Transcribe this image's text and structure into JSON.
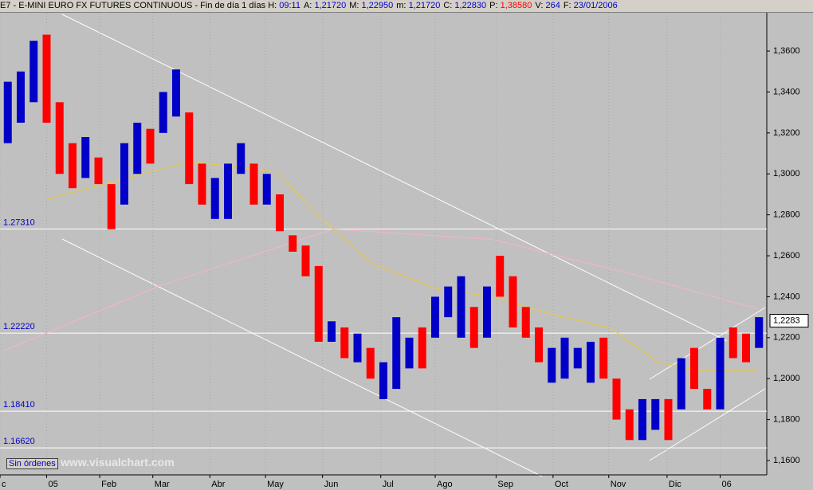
{
  "header": {
    "title": "E7 - E-MINI EURO FX FUTURES CONTINUOUS - Fin de día 1 días",
    "items": [
      {
        "label": "H:",
        "value": "09:11"
      },
      {
        "label": "A:",
        "value": "1,21720"
      },
      {
        "label": "M:",
        "value": "1,22950"
      },
      {
        "label": "m:",
        "value": "1,21720"
      },
      {
        "label": "C:",
        "value": "1,22830"
      },
      {
        "label": "P:",
        "value": "1,38580"
      },
      {
        "label": "V:",
        "value": "264"
      },
      {
        "label": "F:",
        "value": "23/01/2006"
      }
    ]
  },
  "footer": {
    "button": "Sin órdenes",
    "watermark": "www.visualchart.com"
  },
  "chart_data": {
    "type": "range-bar",
    "grid": true,
    "xlim": [
      -3.6,
      55.6
    ],
    "ylim": [
      1.153,
      1.3787
    ],
    "xticks": [
      {
        "value": -3.6,
        "label": "c"
      },
      {
        "value": 0,
        "label": "05"
      },
      {
        "value": 4.1,
        "label": "Feb"
      },
      {
        "value": 8.2,
        "label": "Mar"
      },
      {
        "value": 12.6,
        "label": "Abr"
      },
      {
        "value": 16.9,
        "label": "May"
      },
      {
        "value": 21.3,
        "label": "Jun"
      },
      {
        "value": 25.8,
        "label": "Jul"
      },
      {
        "value": 30,
        "label": "Ago"
      },
      {
        "value": 34.7,
        "label": "Sep"
      },
      {
        "value": 39.1,
        "label": "Oct"
      },
      {
        "value": 43.4,
        "label": "Nov"
      },
      {
        "value": 47.9,
        "label": "Dic"
      },
      {
        "value": 52,
        "label": "06"
      }
    ],
    "yticks": [
      {
        "value": 1.16,
        "label": "1,1600"
      },
      {
        "value": 1.18,
        "label": "1,1800"
      },
      {
        "value": 1.2,
        "label": "1,2000"
      },
      {
        "value": 1.22,
        "label": "1,2200"
      },
      {
        "value": 1.24,
        "label": "1,2400"
      },
      {
        "value": 1.26,
        "label": "1,2600"
      },
      {
        "value": 1.28,
        "label": "1,2800"
      },
      {
        "value": 1.3,
        "label": "1,3000"
      },
      {
        "value": 1.32,
        "label": "1,3200"
      },
      {
        "value": 1.34,
        "label": "1,3400"
      },
      {
        "value": 1.36,
        "label": "1,3600"
      }
    ],
    "up_color": "#0000c8",
    "down_color": "#ff0000",
    "x": [
      -3,
      -2,
      -1,
      0,
      1,
      2,
      3,
      4,
      5,
      6,
      7,
      8,
      9,
      10,
      11,
      12,
      13,
      14,
      15,
      16,
      17,
      18,
      19,
      20,
      21,
      22,
      23,
      24,
      25,
      26,
      27,
      28,
      29,
      30,
      31,
      32,
      33,
      34,
      35,
      36,
      37,
      38,
      39,
      40,
      41,
      42,
      43,
      44,
      45,
      46,
      47,
      48,
      49,
      50,
      51,
      52,
      53,
      54,
      55
    ],
    "lows": [
      1.315,
      1.325,
      1.335,
      1.325,
      1.3,
      1.293,
      1.298,
      1.295,
      1.273,
      1.285,
      1.3,
      1.305,
      1.32,
      1.328,
      1.295,
      1.285,
      1.278,
      1.278,
      1.3,
      1.285,
      1.285,
      1.272,
      1.262,
      1.25,
      1.218,
      1.218,
      1.21,
      1.208,
      1.2,
      1.19,
      1.195,
      1.205,
      1.205,
      1.22,
      1.23,
      1.22,
      1.215,
      1.22,
      1.24,
      1.225,
      1.22,
      1.208,
      1.198,
      1.2,
      1.205,
      1.198,
      1.2,
      1.18,
      1.17,
      1.17,
      1.175,
      1.17,
      1.185,
      1.195,
      1.185,
      1.185,
      1.21,
      1.208,
      1.215
    ],
    "highs": [
      1.345,
      1.35,
      1.365,
      1.368,
      1.335,
      1.315,
      1.318,
      1.308,
      1.295,
      1.315,
      1.325,
      1.322,
      1.34,
      1.351,
      1.33,
      1.305,
      1.298,
      1.305,
      1.315,
      1.305,
      1.3,
      1.29,
      1.27,
      1.265,
      1.255,
      1.228,
      1.225,
      1.222,
      1.215,
      1.208,
      1.23,
      1.22,
      1.225,
      1.24,
      1.245,
      1.25,
      1.235,
      1.245,
      1.26,
      1.25,
      1.235,
      1.225,
      1.215,
      1.22,
      1.215,
      1.218,
      1.22,
      1.2,
      1.185,
      1.19,
      1.19,
      1.19,
      1.21,
      1.215,
      1.195,
      1.22,
      1.225,
      1.222,
      1.23
    ],
    "up": [
      true,
      true,
      true,
      false,
      false,
      false,
      true,
      false,
      false,
      true,
      true,
      false,
      true,
      true,
      false,
      false,
      true,
      true,
      true,
      false,
      true,
      false,
      false,
      false,
      false,
      true,
      false,
      true,
      false,
      true,
      true,
      true,
      false,
      true,
      true,
      true,
      false,
      true,
      false,
      false,
      false,
      false,
      true,
      true,
      true,
      true,
      false,
      false,
      false,
      true,
      true,
      false,
      true,
      false,
      false,
      true,
      false,
      false,
      true
    ],
    "series": [
      {
        "color": "#e6c84a",
        "x": [
          0,
          11,
          17.8,
          20.9,
          25.2,
          30.1,
          34.4,
          39.3,
          43.6,
          47.2,
          50.3,
          54.9
        ],
        "values": [
          1.2876,
          1.306,
          1.301,
          1.28,
          1.256,
          1.244,
          1.24,
          1.231,
          1.2245,
          1.208,
          1.204,
          1.204
        ]
      },
      {
        "color": "#f0b4c8",
        "x": [
          -3.3,
          8.6,
          22.1,
          34.4,
          45.4,
          54.9
        ],
        "values": [
          1.2137,
          1.245,
          1.273,
          1.268,
          1.2507,
          1.234
        ]
      }
    ],
    "levels": [
      {
        "value": 1.2731,
        "label": "1.27310"
      },
      {
        "value": 1.2222,
        "label": "1.22220"
      },
      {
        "value": 1.1841,
        "label": "1.18410"
      },
      {
        "value": 1.1662,
        "label": "1.16620"
      }
    ],
    "last": {
      "value": 1.2283,
      "label": "1,2283"
    }
  }
}
